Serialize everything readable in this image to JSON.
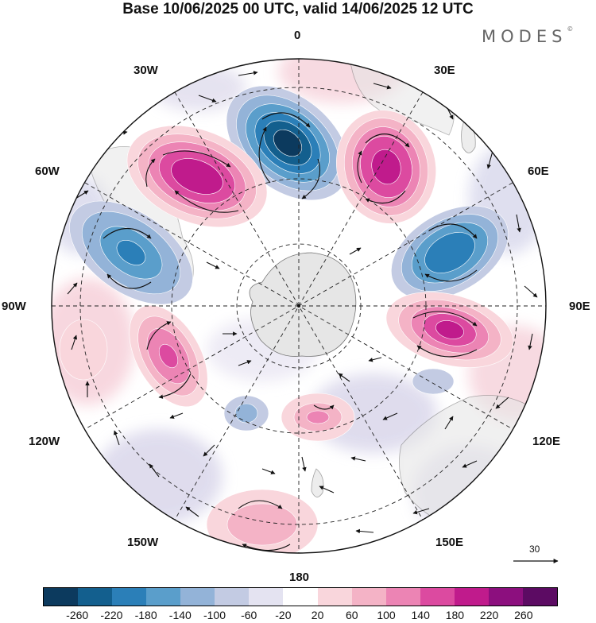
{
  "header": {
    "title": "Base 10/06/2025 00 UTC, valid 14/06/2025 12 UTC",
    "brand": "MODES",
    "brand_mark": "©"
  },
  "map": {
    "projection": "south-polar-stereographic",
    "longitude_labels": [
      {
        "key": "lon_0",
        "text": "0"
      },
      {
        "key": "lon_30e",
        "text": "30E"
      },
      {
        "key": "lon_60e",
        "text": "60E"
      },
      {
        "key": "lon_90e",
        "text": "90E"
      },
      {
        "key": "lon_120e",
        "text": "120E"
      },
      {
        "key": "lon_150e",
        "text": "150E"
      },
      {
        "key": "lon_180",
        "text": "180"
      },
      {
        "key": "lon_150w",
        "text": "150W"
      },
      {
        "key": "lon_120w",
        "text": "120W"
      },
      {
        "key": "lon_90w",
        "text": "90W"
      },
      {
        "key": "lon_60w",
        "text": "60W"
      },
      {
        "key": "lon_30w",
        "text": "30W"
      }
    ],
    "anomaly_centers": [
      {
        "name": "low-south-atlantic",
        "value": -260
      },
      {
        "name": "high-south-america",
        "value": 220
      },
      {
        "name": "high-south-africa",
        "value": 220
      },
      {
        "name": "low-indian-ocean",
        "value": -200
      },
      {
        "name": "high-southern-indian",
        "value": 220
      },
      {
        "name": "low-east-pacific",
        "value": -180
      },
      {
        "name": "high-southeast-pacific",
        "value": 180
      },
      {
        "name": "high-ross-sea",
        "value": 100
      },
      {
        "name": "high-south-pacific",
        "value": 100
      }
    ],
    "wind_reference": {
      "value": "30"
    }
  },
  "colorbar": {
    "ticks": [
      "-260",
      "-220",
      "-180",
      "-140",
      "-100",
      "-60",
      "-20",
      "20",
      "60",
      "100",
      "140",
      "180",
      "220",
      "260"
    ],
    "colors": [
      "#0c3a5e",
      "#135f8e",
      "#2b7fb8",
      "#5a9ecb",
      "#93b3d8",
      "#c3cbe3",
      "#e4e3f1",
      "#ffffff",
      "#f9d6dc",
      "#f4b3c6",
      "#ec84b4",
      "#dc4aa0",
      "#c01b8c",
      "#8c0f7e",
      "#5c0b63"
    ]
  }
}
